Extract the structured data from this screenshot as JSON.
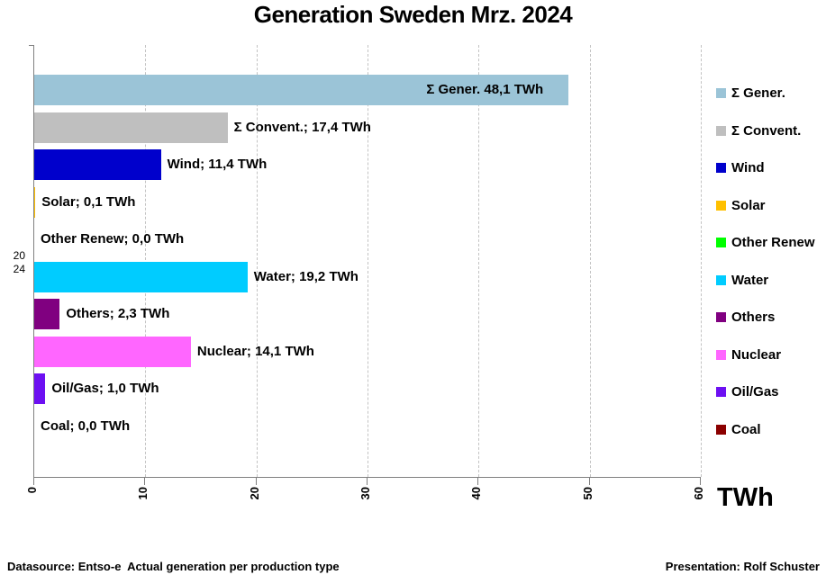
{
  "title": "Generation Sweden Mrz. 2024",
  "y_axis": {
    "category_lines": [
      "20",
      "24"
    ]
  },
  "footer": {
    "left": "Datasource: Entso-e  Actual generation per production type",
    "right": "Presentation: Rolf Schuster"
  },
  "chart_data": {
    "type": "bar",
    "orientation": "horizontal",
    "title": "Generation Sweden Mrz. 2024",
    "category": "2024",
    "xlabel": "TWh",
    "xlim": [
      0,
      60
    ],
    "xticks": [
      0,
      10,
      20,
      30,
      40,
      50,
      60
    ],
    "grid": "vertical-dashed",
    "legend_position": "right",
    "axis_color": "#7f7f7f",
    "gridline_color": "#c3c3c3",
    "series": [
      {
        "name": "Σ Gener.",
        "value": 48.1,
        "label": "Σ Gener. 48,1 TWh",
        "color": "#9bc4d7",
        "label_inside": true
      },
      {
        "name": "Σ Convent.",
        "value": 17.4,
        "label": "Σ Convent.; 17,4 TWh",
        "color": "#bfbfbf",
        "label_inside": false
      },
      {
        "name": "Wind",
        "value": 11.4,
        "label": "Wind; 11,4 TWh",
        "color": "#0000cc",
        "label_inside": false
      },
      {
        "name": "Solar",
        "value": 0.1,
        "label": "Solar; 0,1 TWh",
        "color": "#ffc000",
        "label_inside": false
      },
      {
        "name": "Other Renew",
        "value": 0.0,
        "label": "Other Renew; 0,0 TWh",
        "color": "#00ff00",
        "label_inside": false
      },
      {
        "name": "Water",
        "value": 19.2,
        "label": "Water; 19,2 TWh",
        "color": "#00ccff",
        "label_inside": false
      },
      {
        "name": "Others",
        "value": 2.3,
        "label": "Others; 2,3 TWh",
        "color": "#800080",
        "label_inside": false
      },
      {
        "name": "Nuclear",
        "value": 14.1,
        "label": "Nuclear; 14,1 TWh",
        "color": "#ff66ff",
        "label_inside": false
      },
      {
        "name": "Oil/Gas",
        "value": 1.0,
        "label": "Oil/Gas; 1,0 TWh",
        "color": "#6d10f2",
        "label_inside": false
      },
      {
        "name": "Coal",
        "value": 0.0,
        "label": "Coal; 0,0 TWh",
        "color": "#8b0000",
        "label_inside": false
      }
    ]
  }
}
